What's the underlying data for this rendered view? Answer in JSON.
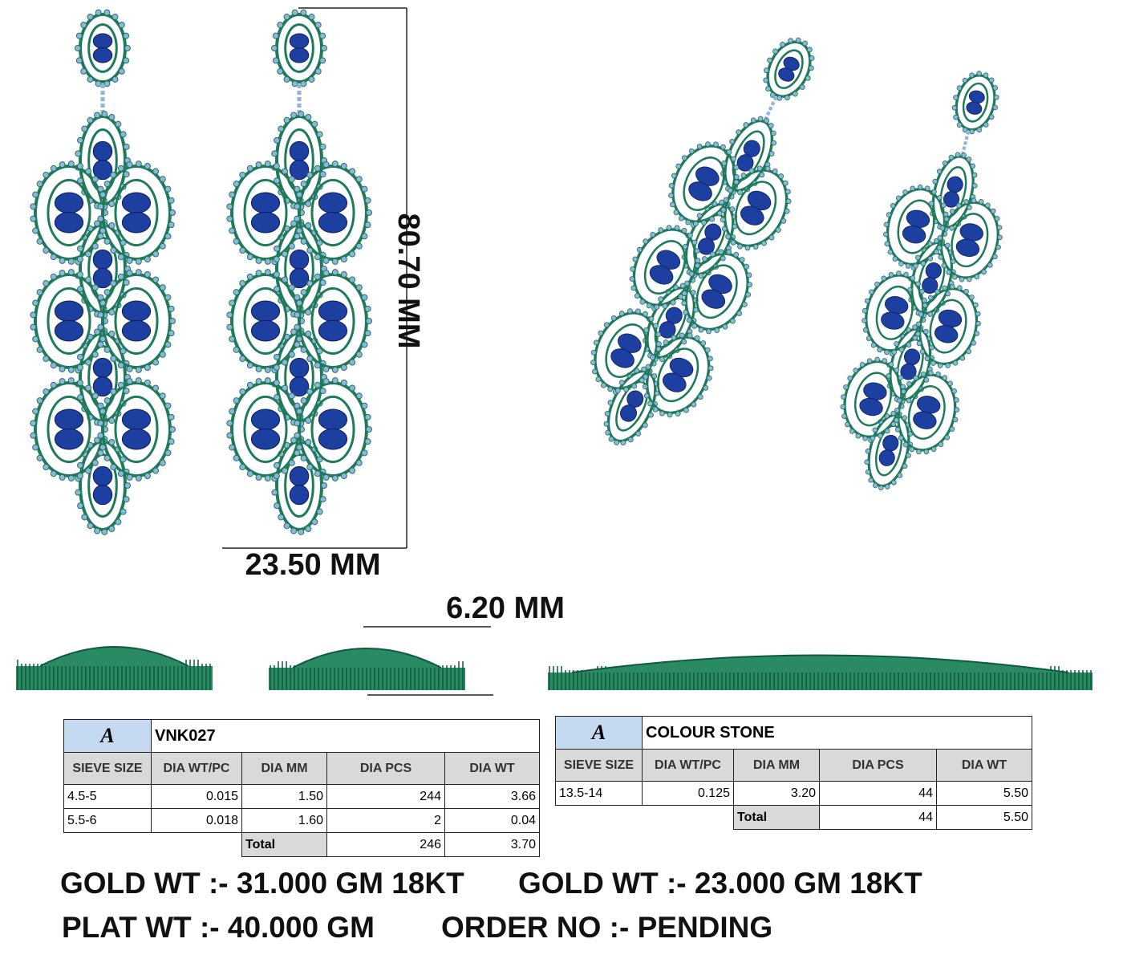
{
  "dimensions": {
    "height": "80.70 MM",
    "width": "23.50 MM",
    "depth": "6.20 MM"
  },
  "tables": [
    {
      "logo": "A",
      "title": "VNK027",
      "columns": [
        "SIEVE SIZE",
        "DIA WT/PC",
        "DIA MM",
        "DIA PCS",
        "DIA WT"
      ],
      "rows": [
        [
          "4.5-5",
          "0.015",
          "1.50",
          "244",
          "3.66"
        ],
        [
          "5.5-6",
          "0.018",
          "1.60",
          "2",
          "0.04"
        ]
      ],
      "total": [
        "Total",
        "246",
        "3.70"
      ]
    },
    {
      "logo": "A",
      "title": "COLOUR STONE",
      "columns": [
        "SIEVE SIZE",
        "DIA WT/PC",
        "DIA MM",
        "DIA PCS",
        "DIA WT"
      ],
      "rows": [
        [
          "13.5-14",
          "0.125",
          "3.20",
          "44",
          "5.50"
        ]
      ],
      "total": [
        "Total",
        "44",
        "5.50"
      ]
    }
  ],
  "footer": {
    "line1": [
      "GOLD WT :- 31.000 GM 18KT",
      "GOLD WT :- 23.000 GM 18KT"
    ],
    "line2": [
      "PLAT WT :- 40.000 GM",
      "ORDER NO :- PENDING"
    ]
  }
}
